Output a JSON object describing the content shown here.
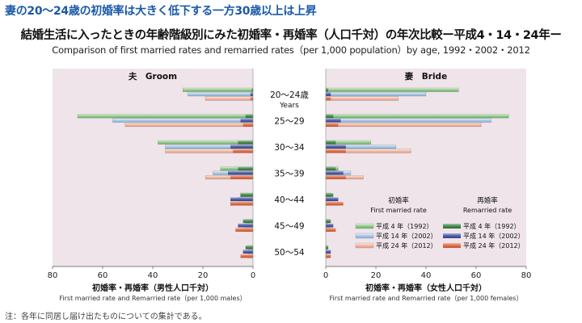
{
  "header": {
    "headline": "妻の20～24歳の初婚率は大きく低下する一方30歳以上は上昇",
    "title": "結婚生活に入ったときの年齢階級別にみた初婚率・再婚率（人口千対）の年次比較ー平成4・14・24年ー",
    "subtitle": "Comparison of first married rates and remarried rates（per 1,000 population）by age, 1992・2002・2012"
  },
  "note": "注：各年に同居し届け出たものについての集計である。",
  "chart_data": {
    "type": "bar",
    "orientation": "horizontal",
    "layout": "back-to-back population pyramid",
    "categories": [
      "20～24歳",
      "25～29",
      "30～34",
      "35～39",
      "40～44",
      "45～49",
      "50～54"
    ],
    "category_unit": "Years",
    "years": [
      "平成 4 年（1992）",
      "平成 14 年（2002）",
      "平成 24 年（2012）"
    ],
    "legend": {
      "first_title": "初婚率",
      "first_subtitle": "First married rate",
      "remarried_title": "再婚率",
      "remarried_subtitle": "Remarried rate"
    },
    "panels": [
      {
        "side": "left",
        "title": "夫　Groom",
        "xlabel": "初婚率・再婚率（男性人口千対）",
        "xlabel_en": "First married rate and Remarried rate（per 1,000 males）",
        "xlim": [
          0,
          80
        ],
        "xticks": [
          80,
          60,
          40,
          20,
          0
        ],
        "first_married": [
          {
            "name": "平成 4 年（1992）",
            "values": [
              28,
              70,
              38,
              13,
              5,
              3,
              2
            ]
          },
          {
            "name": "平成 14 年（2002）",
            "values": [
              26,
              56,
              35,
              16,
              6,
              3,
              2
            ]
          },
          {
            "name": "平成 24 年（2012）",
            "values": [
              19,
              51,
              35,
              19,
              9,
              4,
              2
            ]
          }
        ],
        "remarried": [
          {
            "name": "平成 4 年（1992）",
            "values": [
              0.5,
              3,
              6,
              6,
              5,
              4,
              3
            ]
          },
          {
            "name": "平成 14 年（2002）",
            "values": [
              1,
              5,
              9,
              10,
              9,
              6,
              4
            ]
          },
          {
            "name": "平成 24 年（2012）",
            "values": [
              1,
              4,
              8,
              9,
              9,
              7,
              5
            ]
          }
        ]
      },
      {
        "side": "right",
        "title": "妻　Bride",
        "xlabel": "初婚率・再婚率（女性人口千対）",
        "xlabel_en": "First married rate and Remarried rate（per 1,000 females）",
        "xlim": [
          0,
          80
        ],
        "xticks": [
          0,
          20,
          40,
          60,
          80
        ],
        "first_married": [
          {
            "name": "平成 4 年（1992）",
            "values": [
              53,
              73,
              18,
              5,
              2,
              1,
              0.5
            ]
          },
          {
            "name": "平成 14 年（2002）",
            "values": [
              40,
              66,
              28,
              10,
              3,
              1,
              0.5
            ]
          },
          {
            "name": "平成 24 年（2012）",
            "values": [
              29,
              62,
              34,
              15,
              5,
              2,
              1
            ]
          }
        ],
        "remarried": [
          {
            "name": "平成 4 年（1992）",
            "values": [
              1,
              3,
              4,
              4,
              3,
              2,
              1
            ]
          },
          {
            "name": "平成 14 年（2002）",
            "values": [
              2,
              6,
              8,
              7,
              5,
              3,
              2
            ]
          },
          {
            "name": "平成 24 年（2012）",
            "values": [
              2,
              5,
              8,
              8,
              7,
              4,
              2
            ]
          }
        ]
      }
    ],
    "colors": {
      "first": [
        "#8ecb8a",
        "#a9c9e8",
        "#f2b8a2"
      ],
      "remarried": [
        "#4a8a50",
        "#4e5fa8",
        "#e0704c"
      ],
      "panel_bg": "#efe4ea"
    }
  }
}
